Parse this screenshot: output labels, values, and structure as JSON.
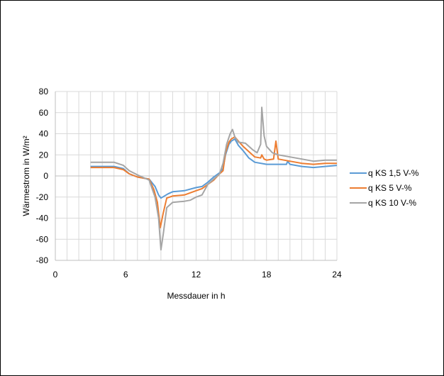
{
  "chart_data": {
    "type": "line",
    "xlabel": "Messdauer in h",
    "ylabel": "Wärmestrom in W/m²",
    "xlim": [
      0,
      24
    ],
    "ylim": [
      -80,
      80
    ],
    "xticks": [
      0,
      6,
      12,
      18,
      24
    ],
    "yticks": [
      -80,
      -60,
      -40,
      -20,
      0,
      20,
      40,
      60,
      80
    ],
    "x_minor_grid_step": 1,
    "grid": true,
    "legend_position": "right",
    "series": [
      {
        "name": "q KS 1,5 V-%",
        "color": "#5b9bd5",
        "points": [
          [
            3,
            9
          ],
          [
            5,
            9
          ],
          [
            5.8,
            7
          ],
          [
            6.3,
            2
          ],
          [
            7,
            -1
          ],
          [
            8,
            -3
          ],
          [
            8.5,
            -10
          ],
          [
            8.8,
            -18
          ],
          [
            9,
            -21
          ],
          [
            9.3,
            -19
          ],
          [
            9.6,
            -17
          ],
          [
            10,
            -15
          ],
          [
            11,
            -14
          ],
          [
            12,
            -11
          ],
          [
            12.5,
            -10
          ],
          [
            13,
            -6
          ],
          [
            13.5,
            -1
          ],
          [
            14,
            3
          ],
          [
            14.3,
            7
          ],
          [
            14.5,
            20
          ],
          [
            14.8,
            30
          ],
          [
            15,
            33
          ],
          [
            15.3,
            35
          ],
          [
            15.6,
            29
          ],
          [
            16,
            24
          ],
          [
            16.5,
            17
          ],
          [
            17,
            13
          ],
          [
            18,
            11
          ],
          [
            19,
            11
          ],
          [
            19.7,
            11
          ],
          [
            19.8,
            14
          ],
          [
            20,
            11
          ],
          [
            21,
            9
          ],
          [
            22,
            8
          ],
          [
            23,
            9
          ],
          [
            24,
            10
          ]
        ]
      },
      {
        "name": "q KS 5 V-%",
        "color": "#ed7d31",
        "points": [
          [
            3,
            8
          ],
          [
            5,
            8
          ],
          [
            5.8,
            6
          ],
          [
            6.3,
            2
          ],
          [
            7,
            -1
          ],
          [
            8,
            -3
          ],
          [
            8.4,
            -13
          ],
          [
            8.7,
            -25
          ],
          [
            8.95,
            -49
          ],
          [
            9.2,
            -35
          ],
          [
            9.5,
            -21
          ],
          [
            10,
            -19
          ],
          [
            11,
            -18
          ],
          [
            12,
            -14
          ],
          [
            12.5,
            -12
          ],
          [
            13,
            -8
          ],
          [
            13.5,
            -4
          ],
          [
            14,
            2
          ],
          [
            14.3,
            5
          ],
          [
            14.5,
            22
          ],
          [
            14.8,
            32
          ],
          [
            15,
            35
          ],
          [
            15.3,
            37
          ],
          [
            15.6,
            33
          ],
          [
            16,
            28
          ],
          [
            16.5,
            23
          ],
          [
            17,
            18
          ],
          [
            17.5,
            17
          ],
          [
            17.6,
            20
          ],
          [
            17.8,
            16
          ],
          [
            18,
            15
          ],
          [
            18.6,
            16
          ],
          [
            18.8,
            33
          ],
          [
            19,
            16
          ],
          [
            20,
            14
          ],
          [
            21,
            12
          ],
          [
            22,
            11
          ],
          [
            23,
            12
          ],
          [
            24,
            12
          ]
        ]
      },
      {
        "name": "q KS 10 V-%",
        "color": "#a5a5a5",
        "points": [
          [
            3,
            13
          ],
          [
            5,
            13
          ],
          [
            5.8,
            10
          ],
          [
            6.3,
            5
          ],
          [
            7,
            1
          ],
          [
            8,
            -4
          ],
          [
            8.5,
            -20
          ],
          [
            8.8,
            -40
          ],
          [
            9,
            -70
          ],
          [
            9.2,
            -55
          ],
          [
            9.5,
            -30
          ],
          [
            10,
            -25
          ],
          [
            11,
            -24
          ],
          [
            11.5,
            -23
          ],
          [
            12,
            -20
          ],
          [
            12.5,
            -18
          ],
          [
            13,
            -8
          ],
          [
            13.5,
            -3
          ],
          [
            14,
            2
          ],
          [
            14.3,
            12
          ],
          [
            14.6,
            30
          ],
          [
            14.9,
            40
          ],
          [
            15.1,
            44
          ],
          [
            15.3,
            37
          ],
          [
            15.6,
            32
          ],
          [
            16.2,
            31
          ],
          [
            16.8,
            25
          ],
          [
            17.2,
            22
          ],
          [
            17.5,
            30
          ],
          [
            17.6,
            65
          ],
          [
            17.8,
            38
          ],
          [
            18,
            28
          ],
          [
            18.5,
            22
          ],
          [
            19,
            20
          ],
          [
            20,
            18
          ],
          [
            21,
            16
          ],
          [
            22,
            14
          ],
          [
            23,
            15
          ],
          [
            24,
            15
          ]
        ]
      }
    ]
  }
}
